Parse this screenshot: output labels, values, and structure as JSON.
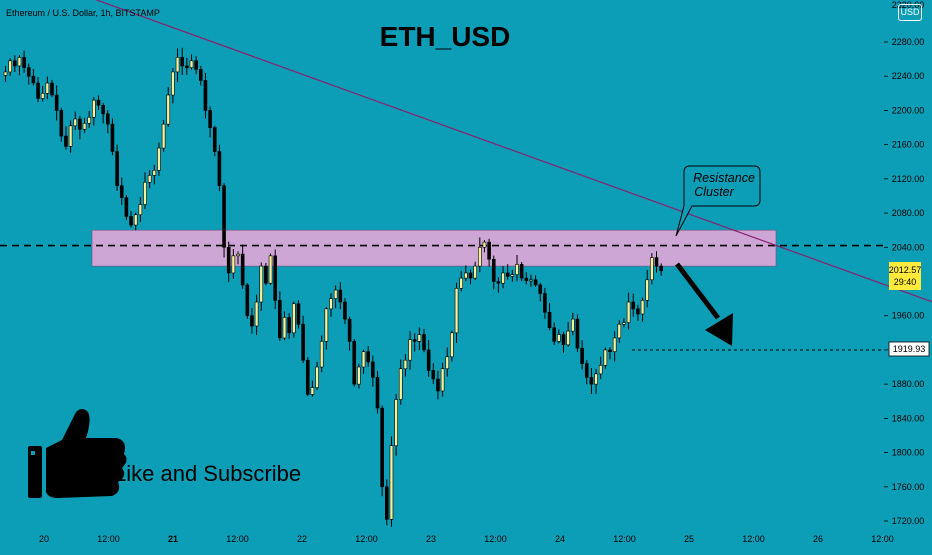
{
  "header": {
    "symbol_info": "Ethereum / U.S. Dollar, 1h, BITSTAMP",
    "title": "ETH_USD",
    "currency_badge": "USD"
  },
  "colors": {
    "background": "#0d9eb7",
    "candle_up": "#f6f29a",
    "candle_down": "#000000",
    "wick": "#000000",
    "zone_fill": "#d8a6d6",
    "trendline": "#8b1e6e",
    "price_tag_bg": "#ffeb3b"
  },
  "chart_data": {
    "type": "candlestick",
    "title": "ETH_USD",
    "ylim": [
      1710,
      2320
    ],
    "xlim": [
      0,
      932
    ],
    "y_ticks": [
      2280,
      2240,
      2200,
      2160,
      2120,
      2080,
      2040,
      1960,
      1920,
      1880,
      1840,
      1800,
      1760,
      1720
    ],
    "y_tick_labels": [
      "2280.00",
      "2240.00",
      "2200.00",
      "2160.00",
      "2120.00",
      "2080.00",
      "2040.00",
      "1960.00",
      "1920.00",
      "1880.00",
      "1840.00",
      "1800.00",
      "1760.00",
      "1720.00"
    ],
    "x_ticks": [
      {
        "label": "20",
        "bold": false,
        "h": 0
      },
      {
        "label": "12:00",
        "bold": false,
        "h": 12
      },
      {
        "label": "21",
        "bold": true,
        "h": 24
      },
      {
        "label": "12:00",
        "bold": false,
        "h": 36
      },
      {
        "label": "22",
        "bold": false,
        "h": 48
      },
      {
        "label": "12:00",
        "bold": false,
        "h": 60
      },
      {
        "label": "23",
        "bold": false,
        "h": 72
      },
      {
        "label": "12:00",
        "bold": false,
        "h": 84
      },
      {
        "label": "24",
        "bold": false,
        "h": 96
      },
      {
        "label": "12:00",
        "bold": false,
        "h": 108
      },
      {
        "label": "25",
        "bold": false,
        "h": 120
      },
      {
        "label": "12:00",
        "bold": false,
        "h": 132
      },
      {
        "label": "26",
        "bold": false,
        "h": 144
      },
      {
        "label": "12:00",
        "bold": false,
        "h": 156
      }
    ],
    "series_closes": [
      2245,
      2258,
      2252,
      2262,
      2250,
      2240,
      2232,
      2214,
      2220,
      2232,
      2218,
      2200,
      2170,
      2158,
      2182,
      2190,
      2178,
      2185,
      2192,
      2212,
      2206,
      2196,
      2184,
      2152,
      2112,
      2098,
      2076,
      2066,
      2078,
      2090,
      2116,
      2124,
      2130,
      2156,
      2184,
      2218,
      2245,
      2262,
      2252,
      2250,
      2258,
      2248,
      2235,
      2200,
      2180,
      2152,
      2112,
      2040,
      2010,
      2030,
      2032,
      1996,
      1960,
      1948,
      1976,
      2018,
      1998,
      2030,
      1978,
      1934,
      1958,
      1940,
      1974,
      1950,
      1908,
      1868,
      1876,
      1900,
      1930,
      1968,
      1980,
      1990,
      1976,
      1956,
      1930,
      1880,
      1900,
      1918,
      1906,
      1888,
      1852,
      1760,
      1722,
      1808,
      1862,
      1898,
      1908,
      1932,
      1930,
      1938,
      1920,
      1896,
      1886,
      1872,
      1898,
      1912,
      1940,
      1992,
      2004,
      2010,
      2004,
      2018,
      2040,
      2046,
      2026,
      2000,
      1998,
      2010,
      2006,
      2008,
      2020,
      2004,
      2001,
      2002,
      1996,
      1986,
      1964,
      1946,
      1930,
      1938,
      1926,
      1942,
      1956,
      1922,
      1904,
      1888,
      1880,
      1892,
      1902,
      1920,
      1918,
      1934,
      1950,
      1952,
      1976,
      1968,
      1962,
      1978,
      2002,
      2028,
      2018,
      2012.57
    ],
    "resistance_zone": [
      2018,
      2060
    ],
    "dashed_level": 2042,
    "target_level": 1919.93,
    "current_price": 2012.57,
    "trendline": {
      "from_h": 5,
      "from_price": 2340,
      "to_h": 190,
      "to_price": 1920
    }
  },
  "annotations": {
    "resistance_line1": "Resistance",
    "resistance_line2": "Cluster",
    "cta": "Like and Subscribe"
  },
  "price_labels": {
    "current_price": "2012.57",
    "countdown": "29:40",
    "target_price": "1919.93",
    "top_clipped": "2320.00"
  }
}
